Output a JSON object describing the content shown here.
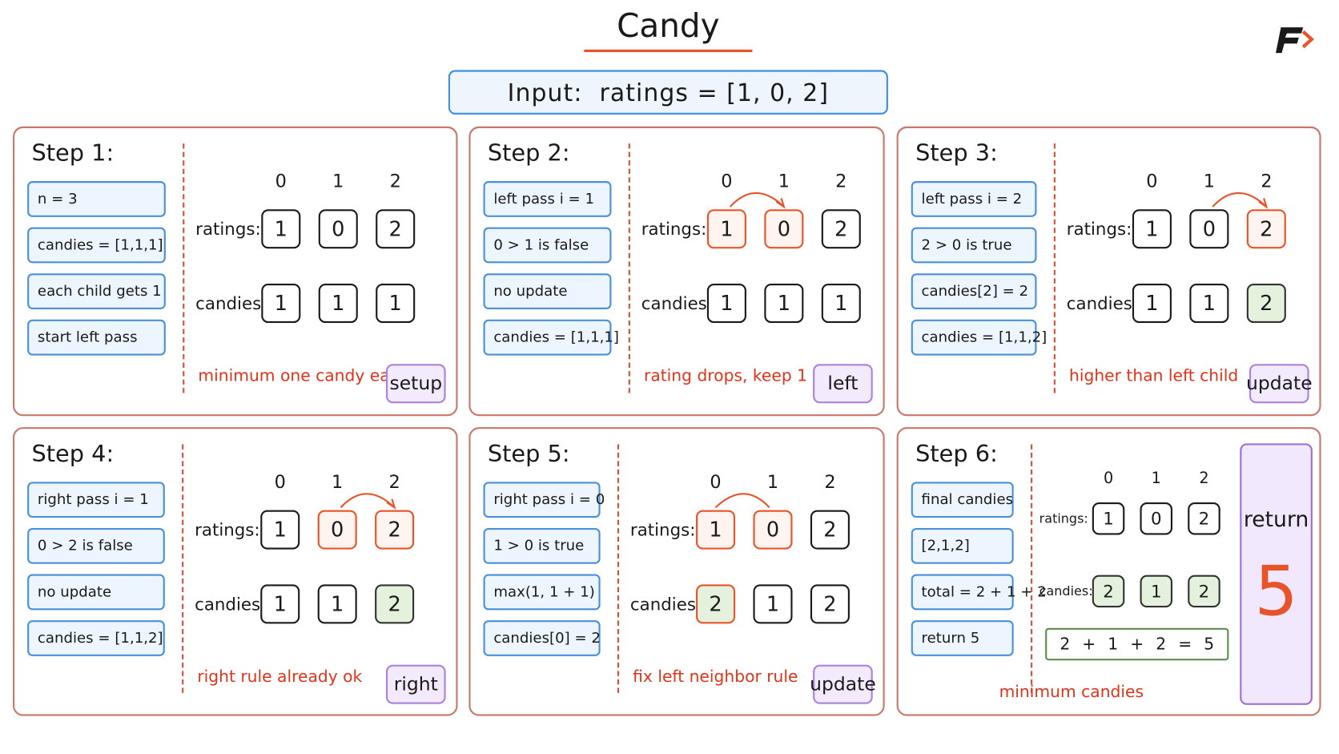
{
  "header": {
    "title": "Candy",
    "input": "Input:  ratings = [1, 0, 2]"
  },
  "steps": [
    {
      "title": "Step 1:",
      "notes": [
        "n = 3",
        "candies = [1,1,1]",
        "each child gets 1",
        "start left pass"
      ],
      "indices": [
        "0",
        "1",
        "2"
      ],
      "ratings_label": "ratings:",
      "ratings": [
        1,
        0,
        2
      ],
      "candies_label": "candies:",
      "candies": [
        1,
        1,
        1
      ],
      "caption": "minimum one candy each",
      "tag": "setup"
    },
    {
      "title": "Step 2:",
      "notes": [
        "left pass i = 1",
        "0 > 1 is false",
        "no update",
        "candies = [1,1,1]"
      ],
      "indices": [
        "0",
        "1",
        "2"
      ],
      "ratings_label": "ratings:",
      "ratings": [
        1,
        0,
        2
      ],
      "candies_label": "candies:",
      "candies": [
        1,
        1,
        1
      ],
      "caption": "rating drops, keep 1",
      "tag": "left"
    },
    {
      "title": "Step 3:",
      "notes": [
        "left pass i = 2",
        "2 > 0 is true",
        "candies[2] = 2",
        "candies = [1,1,2]"
      ],
      "indices": [
        "0",
        "1",
        "2"
      ],
      "ratings_label": "ratings:",
      "ratings": [
        1,
        0,
        2
      ],
      "candies_label": "candies:",
      "candies": [
        1,
        1,
        2
      ],
      "caption": "higher than left child",
      "tag": "update"
    },
    {
      "title": "Step 4:",
      "notes": [
        "right pass i = 1",
        "0 > 2 is false",
        "no update",
        "candies = [1,1,2]"
      ],
      "indices": [
        "0",
        "1",
        "2"
      ],
      "ratings_label": "ratings:",
      "ratings": [
        1,
        0,
        2
      ],
      "candies_label": "candies:",
      "candies": [
        1,
        1,
        2
      ],
      "caption": "right rule already ok",
      "tag": "right"
    },
    {
      "title": "Step 5:",
      "notes": [
        "right pass i = 0",
        "1 > 0 is true",
        "max(1, 1 + 1)",
        "candies[0] = 2"
      ],
      "indices": [
        "0",
        "1",
        "2"
      ],
      "ratings_label": "ratings:",
      "ratings": [
        1,
        0,
        2
      ],
      "candies_label": "candies:",
      "candies": [
        2,
        1,
        2
      ],
      "caption": "fix left neighbor rule",
      "tag": "update"
    },
    {
      "title": "Step 6:",
      "notes": [
        "final candies",
        "[2,1,2]",
        "total = 2 + 1 + 2",
        "return 5"
      ],
      "indices": [
        "0",
        "1",
        "2"
      ],
      "ratings_label": "ratings:",
      "ratings": [
        1,
        0,
        2
      ],
      "candies_label": "candies:",
      "candies": [
        2,
        1,
        2
      ],
      "sum": [
        "2",
        "+",
        "1",
        "+",
        "2",
        "=",
        "5"
      ],
      "caption": "minimum candies",
      "return": {
        "label": "return",
        "value": 5
      }
    }
  ]
}
